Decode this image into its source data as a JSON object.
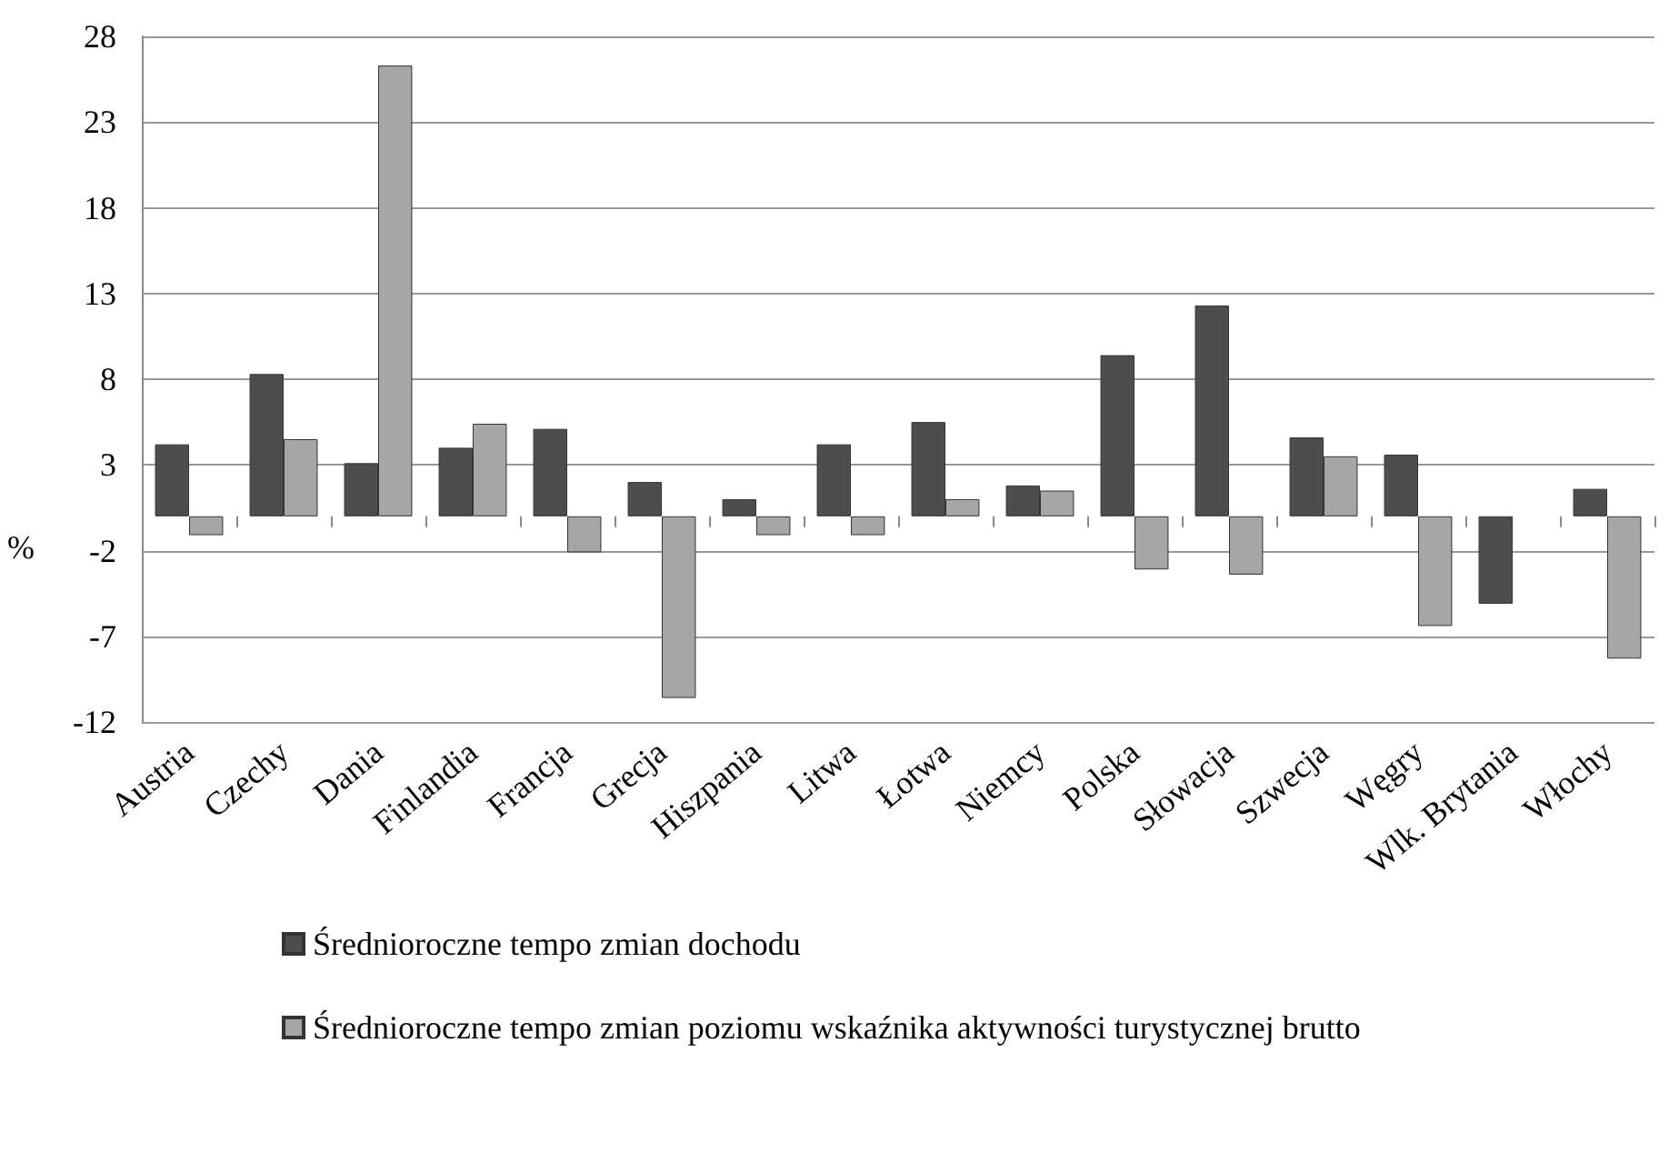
{
  "chart_data": {
    "type": "bar",
    "ylabel": "%",
    "categories": [
      "Austria",
      "Czechy",
      "Dania",
      "Finlandia",
      "Francja",
      "Grecja",
      "Hiszpania",
      "Litwa",
      "Łotwa",
      "Niemcy",
      "Polska",
      "Słowacja",
      "Szwecja",
      "Węgry",
      "Wlk. Brytania",
      "Włochy"
    ],
    "series": [
      {
        "name": "Średnioroczne tempo zmian dochodu",
        "color": "#4d4d4d",
        "values": [
          4.2,
          8.3,
          3.1,
          4.0,
          5.1,
          2.0,
          1.0,
          4.2,
          5.5,
          1.8,
          9.4,
          12.3,
          4.6,
          3.6,
          -5.1,
          1.6
        ]
      },
      {
        "name": "Średnioroczne tempo zmian poziomu wskaźnika aktywności turystycznej brutto",
        "color": "#a6a6a6",
        "values": [
          -1.1,
          4.5,
          26.3,
          5.4,
          -2.1,
          -10.6,
          -1.1,
          -1.1,
          1.0,
          1.5,
          -3.1,
          -3.4,
          3.5,
          -6.4,
          null,
          -8.3
        ]
      }
    ],
    "ylim": [
      -12,
      28
    ],
    "yticks": [
      -12,
      -7,
      -2,
      3,
      8,
      13,
      18,
      23,
      28
    ],
    "grid": "y",
    "legend": "bottom"
  }
}
